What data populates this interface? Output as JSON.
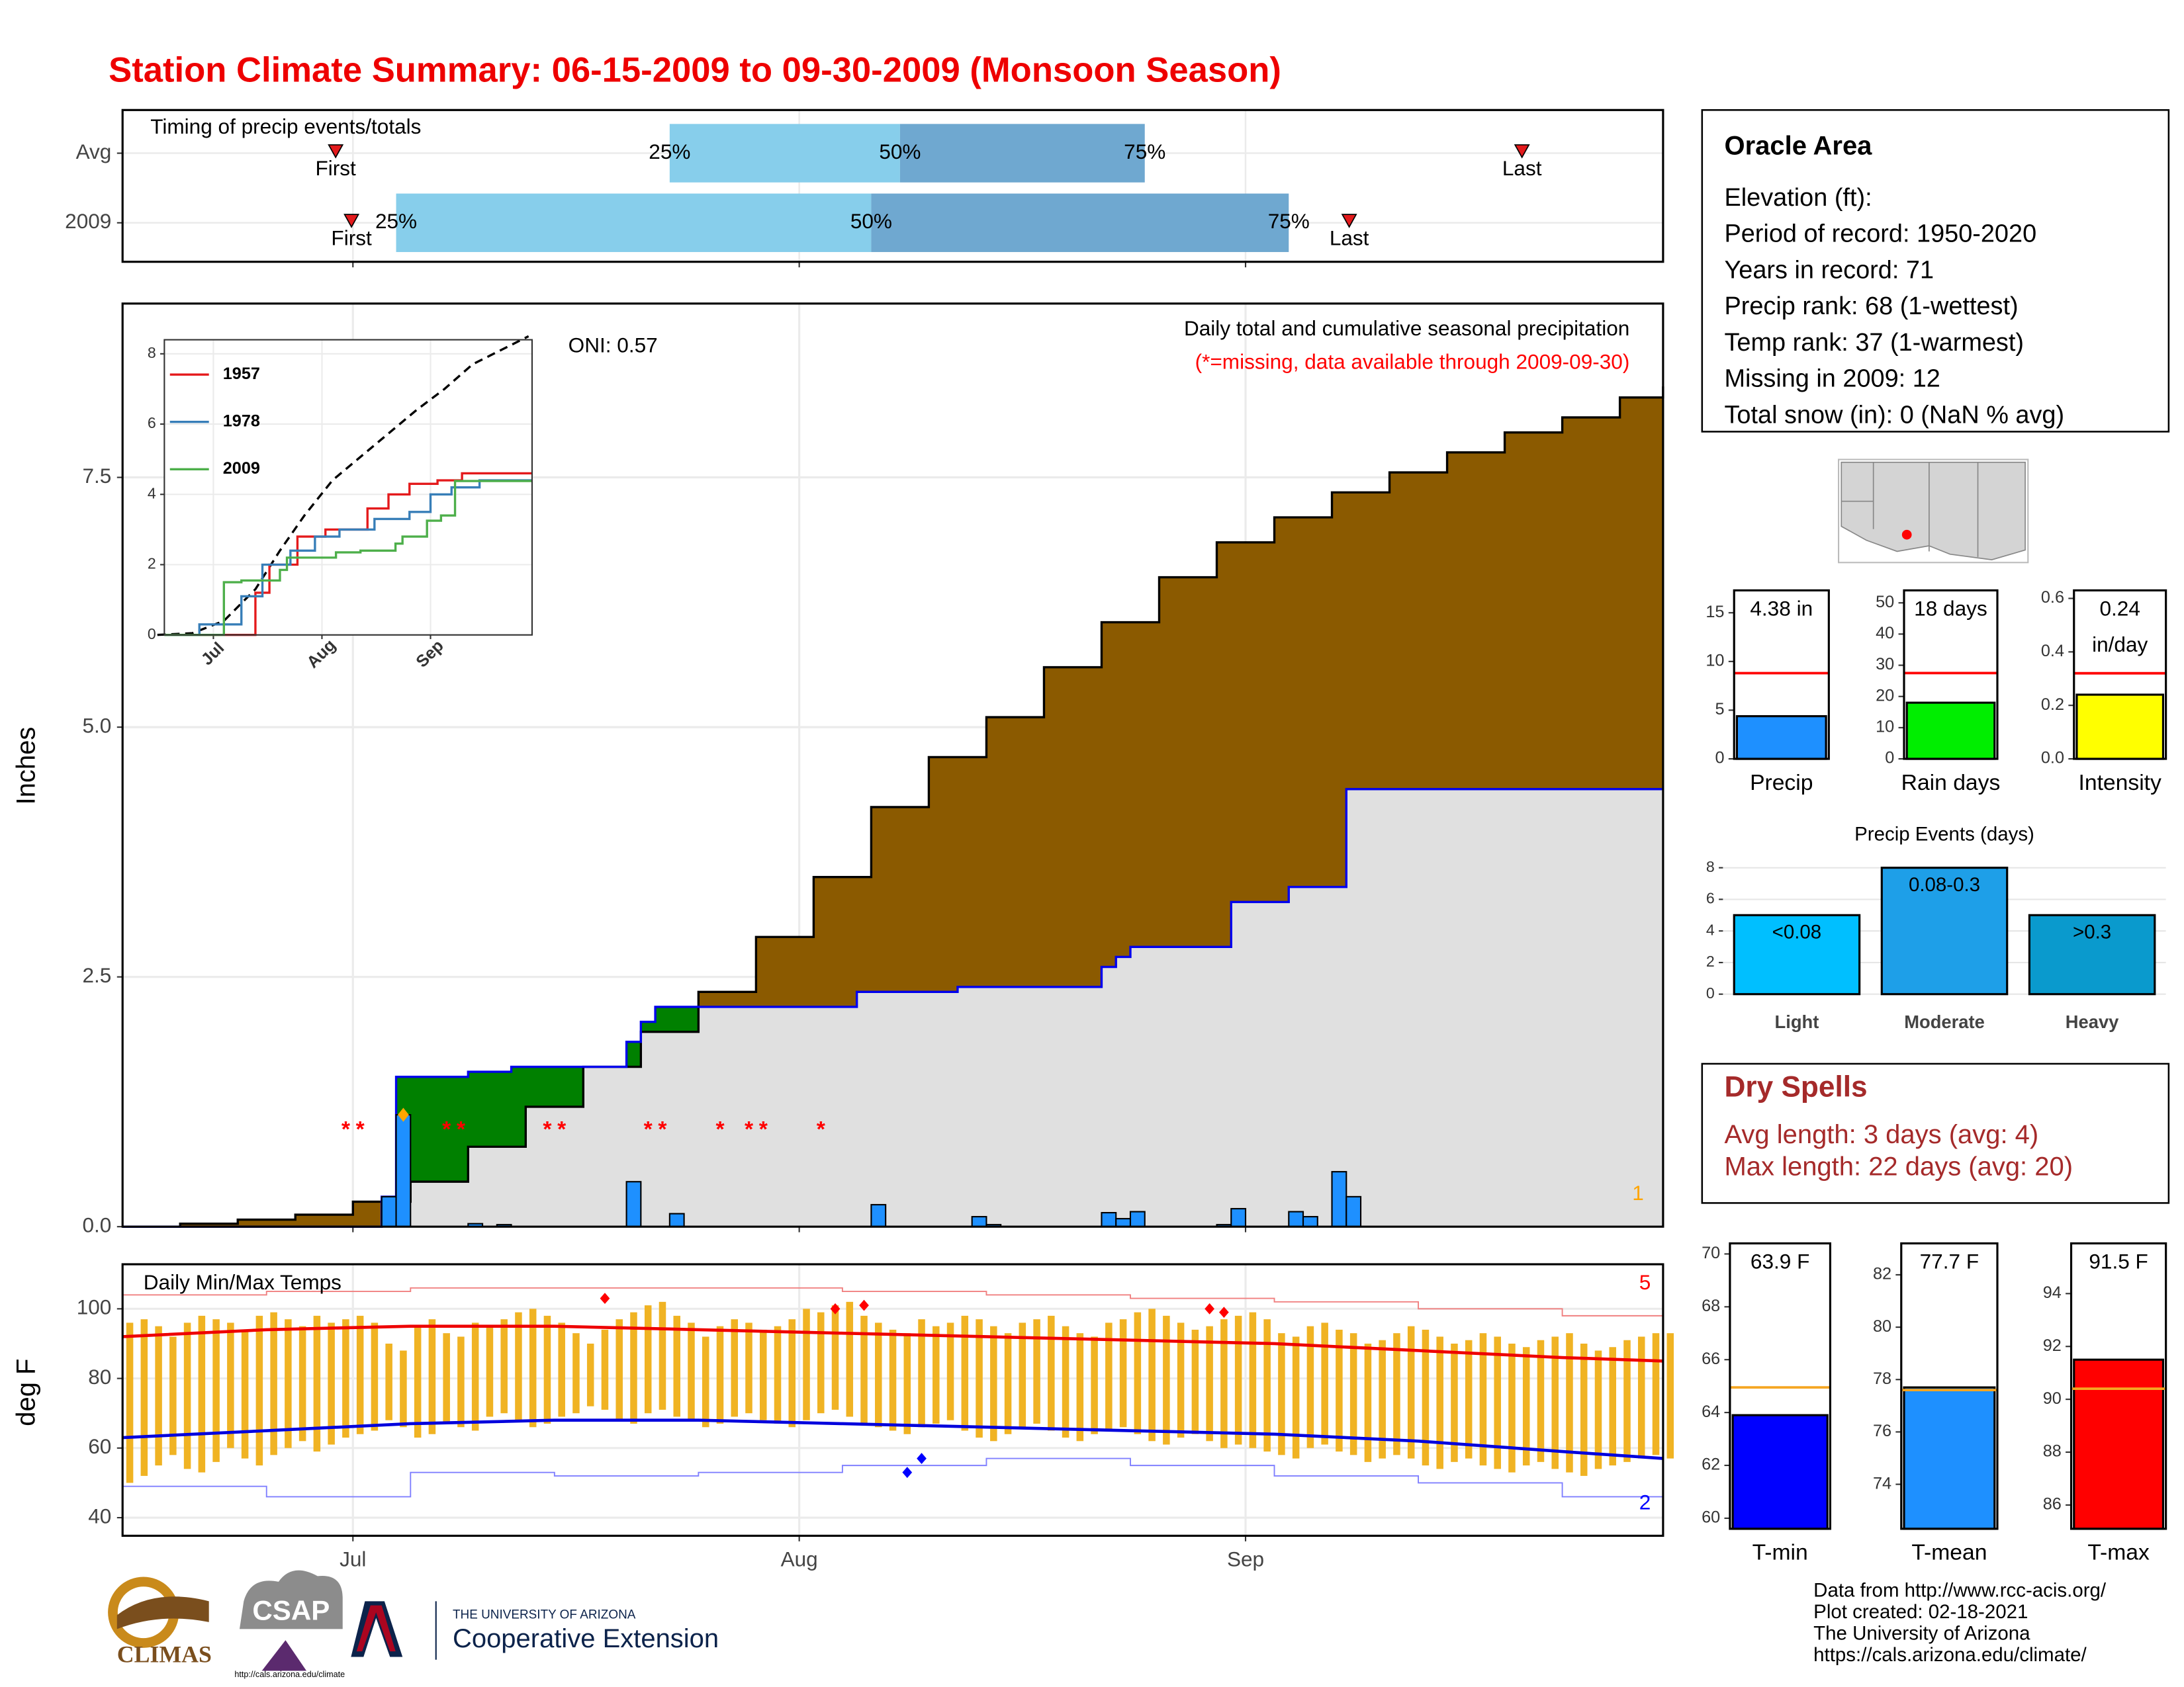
{
  "title": "Station Climate Summary: 06-15-2009 to 09-30-2009 (Monsoon Season)",
  "info": {
    "title": "Oracle Area",
    "lines": [
      "Elevation (ft):",
      "Period of record: 1950-2020",
      "Years in record: 71",
      "Precip rank: 68 (1-wettest)",
      "Temp rank: 37 (1-warmest)",
      "Missing in 2009: 12",
      "Total snow (in): 0 (NaN % avg)"
    ]
  },
  "dry_spells": {
    "title": "Dry Spells",
    "lines": [
      "Avg length: 3 days (avg: 4)",
      "Max length: 22 days (avg: 20)"
    ]
  },
  "footer": [
    "Data from http://www.rcc-acis.org/",
    "Plot created: 02-18-2021",
    "The University of Arizona",
    "https://cals.arizona.edu/climate/"
  ],
  "logos": {
    "climas": "CLIMAS",
    "csap": "CSAP",
    "csap_url": "http://cals.arizona.edu/climate",
    "university": "THE UNIVERSITY OF ARIZONA",
    "extension": "Cooperative Extension"
  },
  "chart_data": [
    {
      "type": "timing",
      "title": "Timing of precip events/totals",
      "xlim": [
        0,
        107
      ],
      "categories": [
        "Avg",
        "2009"
      ],
      "quantile_labels": [
        "25%",
        "50%",
        "75%"
      ],
      "first_label": "First",
      "last_label": "Last",
      "rows": [
        {
          "q": [
            38,
            54,
            71
          ],
          "first": 14.8,
          "last": 97.2
        },
        {
          "q": [
            19,
            52,
            81
          ],
          "first": 15.9,
          "last": 85.2
        }
      ],
      "colors": [
        "#87ceeb",
        "#6fa8d0"
      ],
      "marker_color": "#e31a1c"
    },
    {
      "type": "cumulative",
      "title": "Daily total and cumulative seasonal precipitation",
      "subtitle": "(*=missing, data available through 2009-09-30)",
      "annotation": "ONI: 0.57",
      "y_label": "Inches",
      "xlim": [
        0,
        107
      ],
      "ylim": [
        0,
        9.24
      ],
      "yticks": [
        {
          "value": 0,
          "label": "0.0"
        },
        2.5,
        {
          "value": 5,
          "label": "5.0"
        },
        7.5
      ],
      "average": {
        "x": [
          0,
          4,
          8,
          12,
          16,
          20,
          24,
          28,
          32,
          36,
          40,
          44,
          48,
          52,
          56,
          60,
          64,
          68,
          72,
          76,
          80,
          84,
          88,
          92,
          96,
          100,
          104,
          107
        ],
        "values": [
          0,
          0.03,
          0.07,
          0.12,
          0.25,
          0.45,
          0.8,
          1.2,
          1.6,
          1.95,
          2.35,
          2.9,
          3.5,
          4.2,
          4.7,
          5.1,
          5.6,
          6.05,
          6.5,
          6.85,
          7.1,
          7.35,
          7.55,
          7.75,
          7.95,
          8.1,
          8.3,
          8.41
        ],
        "color": "#8b5a00"
      },
      "season": {
        "x": [
          0,
          18,
          19,
          24,
          27,
          35,
          36,
          37,
          51,
          58,
          68,
          69,
          70,
          77,
          81,
          85,
          107
        ],
        "values": [
          0,
          0.3,
          1.5,
          1.55,
          1.6,
          1.85,
          2.05,
          2.2,
          2.35,
          2.4,
          2.6,
          2.7,
          2.8,
          3.25,
          3.4,
          4.38,
          4.38
        ],
        "color": "#0000ee",
        "fill": "#e0e0e0",
        "above_fill": "#008000"
      },
      "daily": {
        "x": [
          18,
          19,
          24,
          26,
          35,
          38,
          52,
          59,
          60,
          68,
          69,
          70,
          76,
          77,
          81,
          82,
          84,
          85
        ],
        "values": [
          0.3,
          1.12,
          0.03,
          0.02,
          0.45,
          0.13,
          0.22,
          0.1,
          0.02,
          0.14,
          0.08,
          0.15,
          0.02,
          0.18,
          0.15,
          0.1,
          0.55,
          0.3
        ],
        "color": "#1e90ff"
      },
      "missing_x": [
        15,
        16,
        22,
        23,
        29,
        30,
        36,
        37,
        41,
        43,
        44,
        48
      ],
      "missing_marker": "*",
      "missing_color": "red",
      "highlight": {
        "x": 19,
        "value": 1.12,
        "color": "orange"
      },
      "highlight_count": 1
    },
    {
      "type": "line",
      "xlim": [
        2,
        107
      ],
      "ylim": [
        0,
        8.4
      ],
      "yticks": [
        0,
        2,
        4,
        6,
        8
      ],
      "xticks": [
        {
          "value": 16,
          "label": "Jul"
        },
        {
          "value": 47,
          "label": "Aug"
        },
        {
          "value": 78,
          "label": "Sep"
        }
      ],
      "series": [
        {
          "x": [
            0,
            10,
            19,
            28,
            35,
            42,
            50,
            62,
            74,
            82,
            90,
            98,
            106
          ],
          "values": [
            0,
            0.05,
            0.4,
            1.3,
            2.4,
            3.4,
            4.4,
            5.4,
            6.4,
            7,
            7.7,
            8.1,
            8.5
          ],
          "color": "#000000",
          "dashed": true
        },
        {
          "name": "1957",
          "x": [
            2,
            20,
            28,
            32,
            40,
            48,
            60,
            66,
            72,
            80,
            87,
            107
          ],
          "values": [
            0,
            0,
            1.2,
            2,
            2.8,
            3,
            3.6,
            4,
            4.3,
            4.4,
            4.6,
            4.6
          ],
          "color": "#e41a1c"
        },
        {
          "name": "1978",
          "x": [
            2,
            10,
            12,
            22,
            24,
            30,
            38,
            45,
            52,
            62,
            72,
            78,
            84,
            92,
            107
          ],
          "values": [
            0,
            0,
            0.3,
            0.3,
            1.1,
            2,
            2.4,
            2.8,
            3,
            3.3,
            3.5,
            4,
            4.2,
            4.4,
            4.4
          ],
          "color": "#377eb8"
        },
        {
          "name": "2009",
          "x": [
            2,
            16,
            19,
            24,
            35,
            37,
            51,
            58,
            68,
            70,
            77,
            81,
            85,
            107
          ],
          "values": [
            0,
            0,
            1.5,
            1.55,
            1.85,
            2.2,
            2.35,
            2.4,
            2.6,
            2.8,
            3.25,
            3.4,
            4.38,
            4.38
          ],
          "color": "#4daf4a"
        }
      ]
    },
    {
      "type": "temperature",
      "title": "Daily Min/Max Temps",
      "y_label": "deg F",
      "xlim": [
        0,
        107
      ],
      "ylim": [
        34.8,
        112.8
      ],
      "yticks": [
        40,
        60,
        80,
        100
      ],
      "xticks": [
        {
          "value": 16,
          "label": "Jul"
        },
        {
          "value": 47,
          "label": "Aug"
        },
        {
          "value": 78,
          "label": "Sep"
        }
      ],
      "x": [
        0,
        1,
        2,
        3,
        4,
        5,
        6,
        7,
        8,
        9,
        10,
        11,
        12,
        13,
        14,
        15,
        16,
        17,
        18,
        19,
        20,
        21,
        22,
        23,
        24,
        25,
        26,
        27,
        28,
        29,
        30,
        31,
        32,
        33,
        34,
        35,
        36,
        37,
        38,
        39,
        40,
        41,
        42,
        43,
        44,
        45,
        46,
        47,
        48,
        49,
        50,
        51,
        52,
        53,
        54,
        55,
        56,
        57,
        58,
        59,
        60,
        61,
        62,
        63,
        64,
        65,
        66,
        67,
        68,
        69,
        70,
        71,
        72,
        73,
        74,
        75,
        76,
        77,
        78,
        79,
        80,
        81,
        82,
        83,
        84,
        85,
        86,
        87,
        88,
        89,
        90,
        91,
        92,
        93,
        94,
        95,
        96,
        97,
        98,
        99,
        100,
        101,
        102,
        103,
        104,
        105,
        106,
        107
      ],
      "tmax": [
        96,
        97,
        95,
        92,
        96,
        98,
        97,
        96,
        94,
        98,
        99,
        97,
        95,
        98,
        96,
        97,
        98,
        96,
        90,
        88,
        95,
        97,
        93,
        92,
        96,
        95,
        97,
        99,
        100,
        98,
        96,
        93,
        90,
        94,
        97,
        99,
        101,
        102,
        98,
        96,
        92,
        95,
        97,
        96,
        94,
        95,
        97,
        100,
        99,
        101,
        102,
        98,
        96,
        94,
        93,
        97,
        95,
        96,
        98,
        97,
        95,
        93,
        96,
        97,
        98,
        95,
        93,
        92,
        96,
        97,
        99,
        100,
        98,
        96,
        94,
        95,
        97,
        98,
        99,
        97,
        93,
        92,
        95,
        96,
        94,
        93,
        90,
        91,
        93,
        95,
        94,
        92,
        90,
        91,
        93,
        92,
        90,
        89,
        91,
        92,
        93,
        90,
        88,
        89,
        91,
        92,
        93,
        93
      ],
      "tmin": [
        50,
        52,
        55,
        58,
        54,
        53,
        56,
        60,
        57,
        55,
        58,
        60,
        62,
        59,
        61,
        63,
        64,
        65,
        68,
        66,
        63,
        64,
        67,
        66,
        65,
        69,
        70,
        68,
        66,
        67,
        69,
        70,
        72,
        71,
        68,
        67,
        70,
        71,
        69,
        68,
        66,
        67,
        69,
        70,
        68,
        67,
        66,
        68,
        70,
        71,
        69,
        67,
        66,
        65,
        64,
        66,
        67,
        68,
        65,
        63,
        62,
        64,
        66,
        67,
        65,
        63,
        62,
        64,
        65,
        66,
        64,
        62,
        61,
        63,
        64,
        62,
        60,
        61,
        60,
        59,
        58,
        57,
        60,
        61,
        59,
        58,
        56,
        57,
        58,
        57,
        55,
        54,
        56,
        57,
        55,
        54,
        53,
        55,
        56,
        54,
        53,
        52,
        54,
        55,
        56,
        57,
        58,
        57
      ],
      "bar_color": "#f0b323",
      "avg_max": {
        "x": [
          0,
          10,
          20,
          30,
          40,
          50,
          60,
          70,
          80,
          90,
          100,
          107
        ],
        "values": [
          92,
          94,
          95,
          95,
          94,
          93,
          92,
          91,
          90,
          88,
          86,
          85
        ],
        "color": "#ee0000"
      },
      "avg_min": {
        "x": [
          0,
          10,
          20,
          30,
          40,
          50,
          60,
          70,
          80,
          90,
          100,
          107
        ],
        "values": [
          63,
          65,
          67,
          68,
          68,
          67,
          66,
          65,
          64,
          62,
          59,
          57
        ],
        "color": "#0000dd"
      },
      "record_high": {
        "x": [
          0,
          10,
          20,
          30,
          40,
          50,
          60,
          70,
          80,
          90,
          100,
          107
        ],
        "values": [
          104,
          105,
          106,
          106,
          106,
          105,
          104,
          103,
          102,
          100,
          98,
          96
        ],
        "color": "#f08080"
      },
      "record_low": {
        "x": [
          0,
          10,
          20,
          30,
          40,
          50,
          60,
          70,
          80,
          90,
          100,
          107
        ],
        "values": [
          49,
          46,
          53,
          52,
          53,
          55,
          57,
          55,
          52,
          50,
          46,
          44
        ],
        "color": "#8080ff"
      },
      "record_high_days": {
        "x": [
          33,
          49,
          51,
          75,
          76
        ],
        "values": [
          103,
          100,
          101,
          100,
          99
        ],
        "color": "red"
      },
      "record_low_days": {
        "x": [
          54,
          55
        ],
        "values": [
          53,
          57
        ],
        "color": "blue"
      },
      "record_high_count": 5,
      "record_low_count": 2
    },
    {
      "type": "bar",
      "categories": [
        "Precip"
      ],
      "values": [
        4.38
      ],
      "value_labels": [
        "4.38 in"
      ],
      "color": "#1e90ff",
      "average": 8.8,
      "average_color": "red",
      "ylim": [
        0,
        17.3
      ],
      "yticks": [
        0,
        5,
        10,
        15
      ]
    },
    {
      "type": "bar",
      "categories": [
        "Rain days"
      ],
      "values": [
        18
      ],
      "value_labels": [
        "18 days"
      ],
      "color": "#00ee00",
      "average": 27.5,
      "average_color": "red",
      "ylim": [
        0,
        54
      ],
      "yticks": [
        0,
        10,
        20,
        30,
        40,
        50
      ]
    },
    {
      "type": "bar",
      "categories": [
        "Intensity"
      ],
      "values": [
        0.24
      ],
      "value_labels": [
        "0.24 in/day"
      ],
      "color": "#ffff00",
      "average": 0.32,
      "average_color": "red",
      "ylim": [
        0,
        0.63
      ],
      "yticks": [
        {
          "value": 0,
          "label": "0.0"
        },
        0.2,
        0.4,
        0.6
      ]
    },
    {
      "type": "events",
      "title": "Precip Events (days)",
      "categories": [
        "Light",
        "Moderate",
        "Heavy"
      ],
      "values": [
        5,
        8,
        5
      ],
      "bar_labels": [
        "<0.08",
        "0.08-0.3",
        ">0.3"
      ],
      "colors": [
        "#00bfff",
        "#1e9fe8",
        "#0a9acd"
      ],
      "ylim": [
        0,
        8.9
      ],
      "yticks": [
        0,
        2,
        4,
        6,
        8
      ]
    },
    {
      "type": "bar",
      "categories": [
        "T-min"
      ],
      "values": [
        63.9
      ],
      "value_labels": [
        "63.9 F"
      ],
      "color": "#0000ff",
      "average": 64.95,
      "average_color": "#f5a623",
      "ylim": [
        59.6,
        70.4
      ],
      "yticks": [
        60,
        62,
        64,
        66,
        68,
        70
      ]
    },
    {
      "type": "bar",
      "categories": [
        "T-mean"
      ],
      "values": [
        77.7
      ],
      "value_labels": [
        "77.7 F"
      ],
      "color": "#1e90ff",
      "average": 77.6,
      "average_color": "#f5a623",
      "ylim": [
        72.3,
        83.2
      ],
      "yticks": [
        74,
        76,
        78,
        80,
        82
      ]
    },
    {
      "type": "bar",
      "categories": [
        "T-max"
      ],
      "values": [
        91.5
      ],
      "value_labels": [
        "91.5 F"
      ],
      "color": "#ff0000",
      "average": 90.4,
      "average_color": "#f5a623",
      "ylim": [
        85.1,
        95.9
      ],
      "yticks": [
        86,
        88,
        90,
        92,
        94
      ]
    }
  ]
}
